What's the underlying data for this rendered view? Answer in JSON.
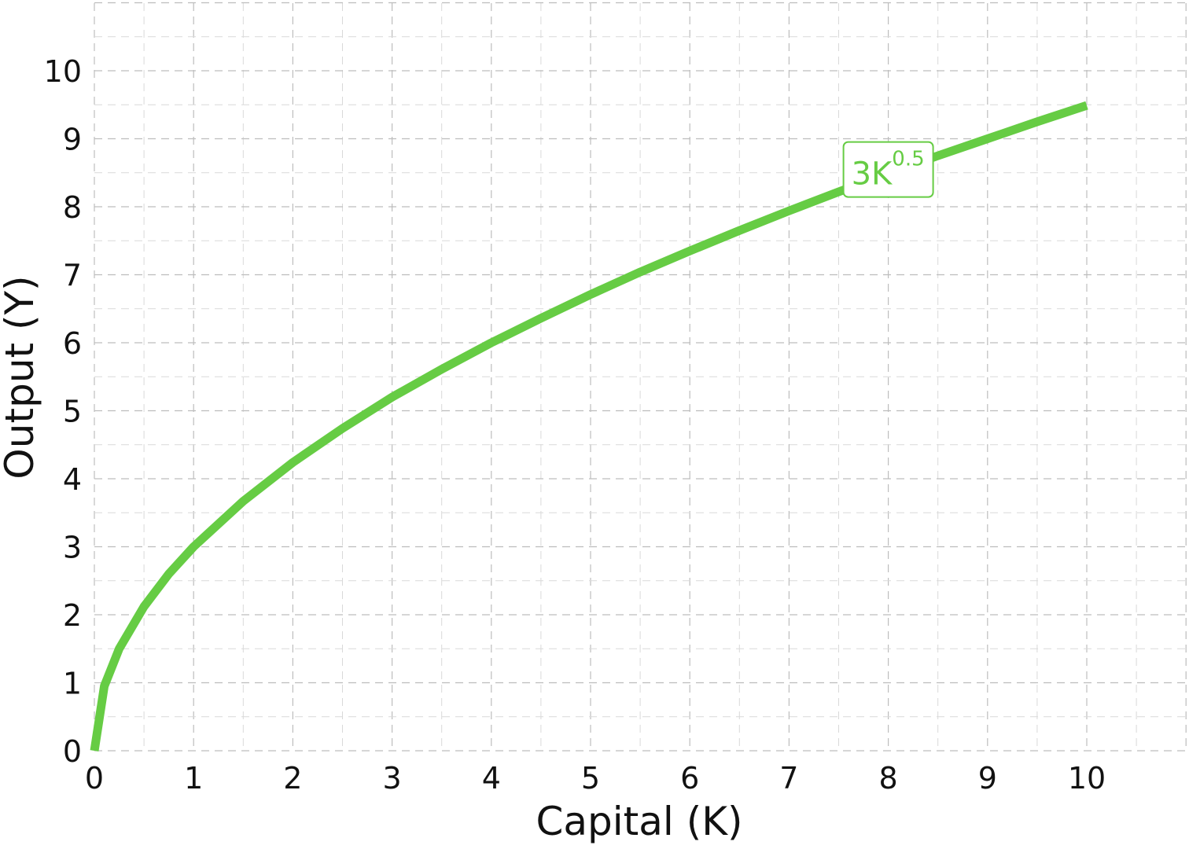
{
  "chart_data": {
    "type": "line",
    "title": "",
    "xlabel": "Capital (K)",
    "ylabel": "Output (Y)",
    "xlim": [
      0,
      11
    ],
    "ylim": [
      0,
      11
    ],
    "x_ticks": [
      "0",
      "1",
      "2",
      "3",
      "4",
      "5",
      "6",
      "7",
      "8",
      "9",
      "10"
    ],
    "y_ticks": [
      "0",
      "1",
      "2",
      "3",
      "4",
      "5",
      "6",
      "7",
      "8",
      "9",
      "10"
    ],
    "grid": true,
    "grid_style": "dashed, major and minor",
    "series": [
      {
        "name": "3K0.5",
        "name_base": "3K",
        "name_sup": "0.5",
        "color": "#66cc44",
        "function": "3*K^0.5",
        "x": [
          0,
          0.1,
          0.25,
          0.5,
          0.75,
          1,
          1.5,
          2,
          2.5,
          3,
          3.5,
          4,
          4.5,
          5,
          5.5,
          6,
          6.5,
          7,
          7.5,
          8,
          8.5,
          9,
          9.5,
          10
        ],
        "y": [
          0,
          0.95,
          1.5,
          2.12,
          2.6,
          3.0,
          3.67,
          4.24,
          4.74,
          5.2,
          5.61,
          6.0,
          6.36,
          6.71,
          7.04,
          7.35,
          7.65,
          7.94,
          8.22,
          8.49,
          8.75,
          9.0,
          9.25,
          9.49
        ]
      }
    ],
    "legend": "inline label on curve near K=8"
  }
}
